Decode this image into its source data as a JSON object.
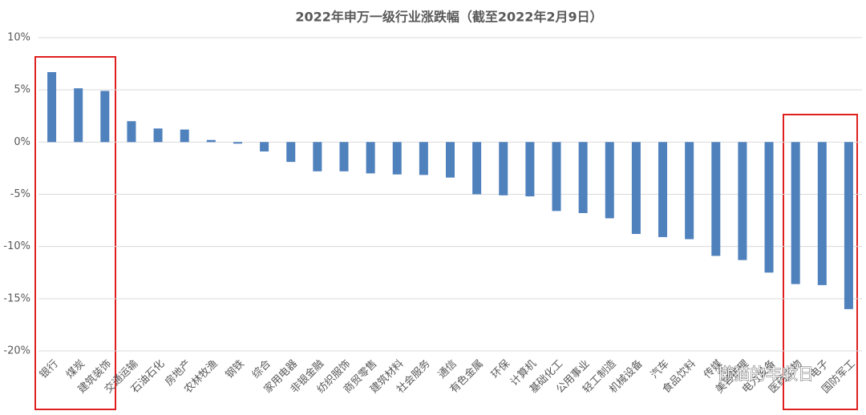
{
  "chart_data": {
    "type": "bar",
    "title": "2022年申万一级行业涨跌幅（截至2022年2月9日）",
    "categories": [
      "银行",
      "煤炭",
      "建筑装饰",
      "交通运输",
      "石油石化",
      "房地产",
      "农林牧渔",
      "钢铁",
      "综合",
      "家用电器",
      "非银金融",
      "纺织服饰",
      "商贸零售",
      "建筑材料",
      "社会服务",
      "通信",
      "有色金属",
      "环保",
      "计算机",
      "基础化工",
      "公用事业",
      "轻工制造",
      "机械设备",
      "汽车",
      "食品饮料",
      "传媒",
      "美容护理",
      "电力设备",
      "医药生物",
      "电子",
      "国防军工"
    ],
    "values": [
      6.7,
      5.15,
      4.9,
      2.0,
      1.3,
      1.2,
      0.2,
      -0.15,
      -0.9,
      -1.9,
      -2.8,
      -2.8,
      -3.0,
      -3.1,
      -3.15,
      -3.4,
      -5.0,
      -5.1,
      -5.2,
      -6.6,
      -6.8,
      -7.3,
      -8.8,
      -9.1,
      -9.3,
      -10.9,
      -11.3,
      -12.5,
      -13.6,
      -13.7,
      -16.0
    ],
    "color": "#4f81bd",
    "ylim": [
      -20,
      10
    ],
    "yticks": [
      {
        "value": -20,
        "label": "-20%"
      },
      {
        "value": -15,
        "label": "-15%"
      },
      {
        "value": -10,
        "label": "-10%"
      },
      {
        "value": -5,
        "label": "-5%"
      },
      {
        "value": 0,
        "label": "0%"
      },
      {
        "value": 5,
        "label": "5%"
      },
      {
        "value": 10,
        "label": "10%"
      }
    ],
    "grid": true,
    "watermark": "懒猫的丰收日"
  }
}
